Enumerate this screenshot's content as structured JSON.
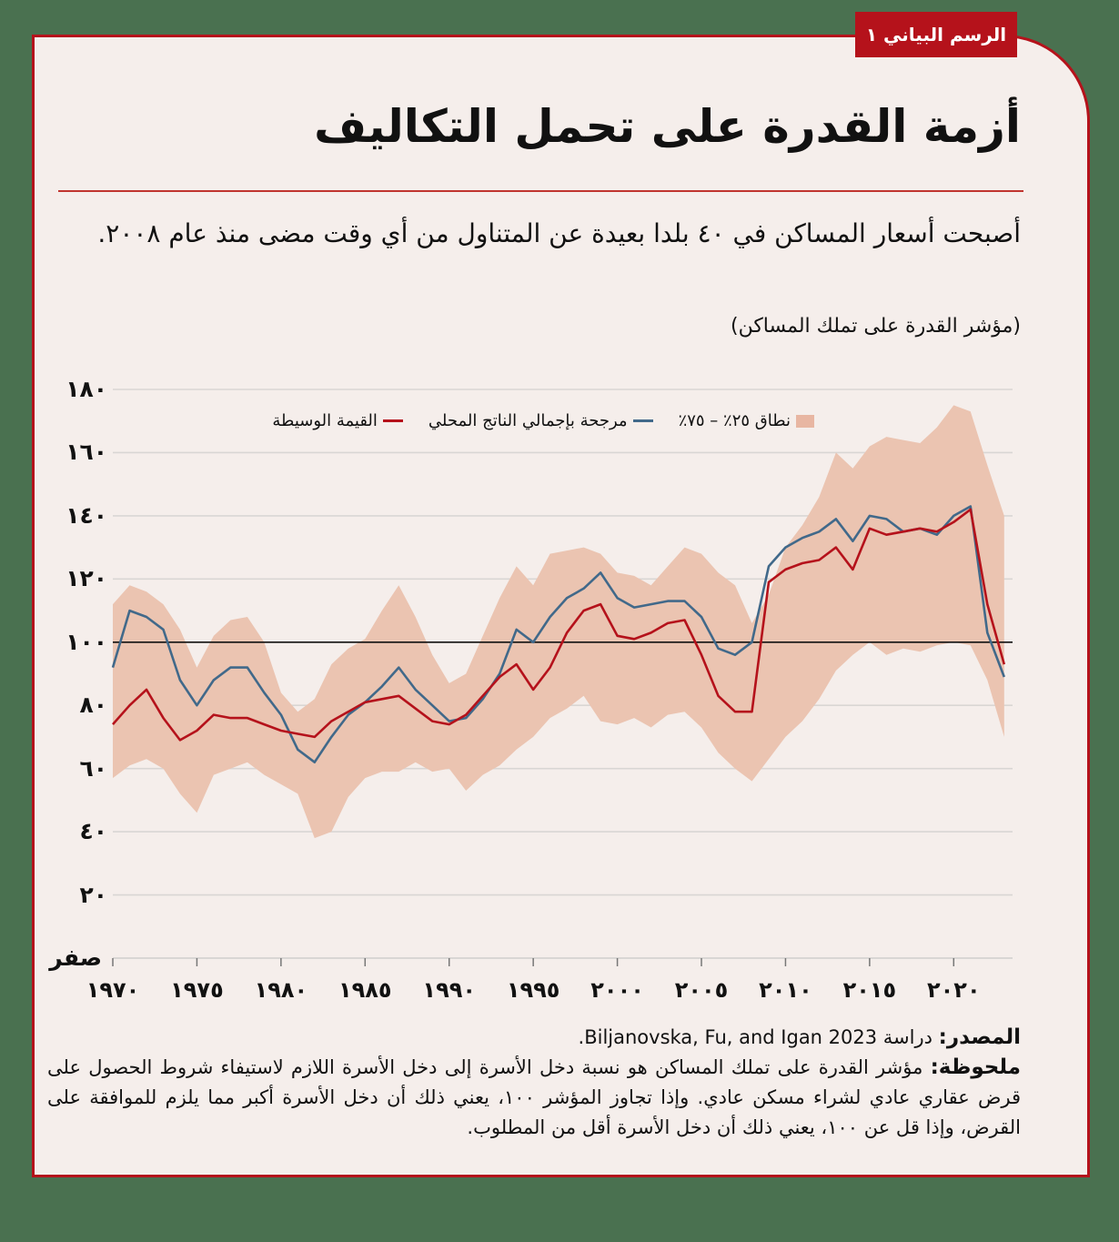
{
  "tag": "الرسم البياني ١",
  "title": "أزمة القدرة على تحمل التكاليف",
  "subtitle": "أصبحت أسعار المساكن في ٤٠ بلدا بعيدة عن المتناول من أي وقت مضى منذ عام ٢٠٠٨.",
  "units": "(مؤشر القدرة على تملك المساكن)",
  "legend": {
    "band": "نطاق ٢٥٪ – ٧٥٪",
    "gdp": "مرجحة بإجمالي الناتج المحلي",
    "median": "القيمة الوسيطة"
  },
  "colors": {
    "frame": "#b5121b",
    "background": "#f5eeeb",
    "outer": "#4a7150",
    "band": "#ebc4b1",
    "gdp_line": "#41698a",
    "median_line": "#b5121b",
    "reference_line": "#111111",
    "grid": "#d9d6d4"
  },
  "footer": {
    "source_label": "المصدر:",
    "source_text": " دراسة Biljanovska, Fu, and Igan 2023.",
    "note_label": "ملحوظة:",
    "note_text": " مؤشر القدرة على تملك المساكن هو نسبة دخل الأسرة إلى دخل الأسرة اللازم لاستيفاء شروط الحصول على قرض عقاري عادي لشراء مسكن عادي. وإذا تجاوز المؤشر ١٠٠، يعني ذلك أن دخل الأسرة أكبر مما يلزم للموافقة على القرض، وإذا قل عن ١٠٠، يعني ذلك أن دخل الأسرة أقل من المطلوب."
  },
  "chart_data": {
    "type": "line",
    "title": "أزمة القدرة على تحمل التكاليف",
    "ylabel": "مؤشر القدرة على تملك المساكن",
    "xlabel": "",
    "ylim": [
      0,
      180
    ],
    "xlim": [
      1970,
      2023.5
    ],
    "y_ticks": [
      0,
      20,
      40,
      60,
      80,
      100,
      120,
      140,
      160,
      180
    ],
    "y_tick_labels": [
      "صفر",
      "٢٠",
      "٤٠",
      "٦٠",
      "٨٠",
      "١٠٠",
      "١٢٠",
      "١٤٠",
      "١٦٠",
      "١٨٠"
    ],
    "x_ticks": [
      1970,
      1975,
      1980,
      1985,
      1990,
      1995,
      2000,
      2005,
      2010,
      2015,
      2020
    ],
    "x_tick_labels": [
      "١٩٧٠",
      "١٩٧٥",
      "١٩٨٠",
      "١٩٨٥",
      "١٩٩٠",
      "١٩٩٥",
      "٢٠٠٠",
      "٢٠٠٥",
      "٢٠١٠",
      "٢٠١٥",
      "٢٠٢٠"
    ],
    "reference_line": 100,
    "grid": true,
    "legend_position": "top",
    "x": [
      1970,
      1971,
      1972,
      1973,
      1974,
      1975,
      1976,
      1977,
      1978,
      1979,
      1980,
      1981,
      1982,
      1983,
      1984,
      1985,
      1986,
      1987,
      1988,
      1989,
      1990,
      1991,
      1992,
      1993,
      1994,
      1995,
      1996,
      1997,
      1998,
      1999,
      2000,
      2001,
      2002,
      2003,
      2004,
      2005,
      2006,
      2007,
      2008,
      2009,
      2010,
      2011,
      2012,
      2013,
      2014,
      2015,
      2016,
      2017,
      2018,
      2019,
      2020,
      2021,
      2022,
      2023
    ],
    "series": [
      {
        "name": "مرجحة بإجمالي الناتج المحلي",
        "color": "#41698a",
        "values": [
          92,
          110,
          108,
          104,
          88,
          80,
          88,
          92,
          92,
          84,
          77,
          66,
          62,
          70,
          77,
          81,
          86,
          92,
          85,
          80,
          75,
          76,
          82,
          90,
          104,
          100,
          108,
          114,
          117,
          122,
          114,
          111,
          112,
          113,
          113,
          108,
          98,
          96,
          100,
          124,
          130,
          133,
          135,
          139,
          132,
          140,
          139,
          135,
          136,
          134,
          140,
          143,
          103,
          89
        ]
      },
      {
        "name": "القيمة الوسيطة",
        "color": "#b5121b",
        "values": [
          74,
          80,
          85,
          76,
          69,
          72,
          77,
          76,
          76,
          74,
          72,
          71,
          70,
          75,
          78,
          81,
          82,
          83,
          79,
          75,
          74,
          77,
          83,
          89,
          93,
          85,
          92,
          103,
          110,
          112,
          102,
          101,
          103,
          106,
          107,
          96,
          83,
          78,
          78,
          119,
          123,
          125,
          126,
          130,
          123,
          136,
          134,
          135,
          136,
          135,
          138,
          142,
          112,
          93
        ]
      },
      {
        "name": "نطاق ٢٥٪ – ٧٥٪ (upper)",
        "color": "#ebc4b1",
        "values": [
          112,
          118,
          116,
          112,
          104,
          92,
          102,
          107,
          108,
          100,
          84,
          78,
          82,
          93,
          98,
          101,
          110,
          118,
          108,
          96,
          87,
          90,
          102,
          114,
          124,
          118,
          128,
          129,
          130,
          128,
          122,
          121,
          118,
          124,
          130,
          128,
          122,
          118,
          106,
          115,
          130,
          137,
          146,
          160,
          155,
          162,
          165,
          164,
          163,
          168,
          175,
          173,
          156,
          140
        ]
      },
      {
        "name": "نطاق ٢٥٪ – ٧٥٪ (lower)",
        "color": "#ebc4b1",
        "values": [
          57,
          61,
          63,
          60,
          52,
          46,
          58,
          60,
          62,
          58,
          55,
          52,
          38,
          40,
          51,
          57,
          59,
          59,
          62,
          59,
          60,
          53,
          58,
          61,
          66,
          70,
          76,
          79,
          83,
          75,
          74,
          76,
          73,
          77,
          78,
          73,
          65,
          60,
          56,
          63,
          70,
          75,
          82,
          91,
          96,
          100,
          96,
          98,
          97,
          99,
          100,
          99,
          88,
          70
        ]
      }
    ]
  }
}
